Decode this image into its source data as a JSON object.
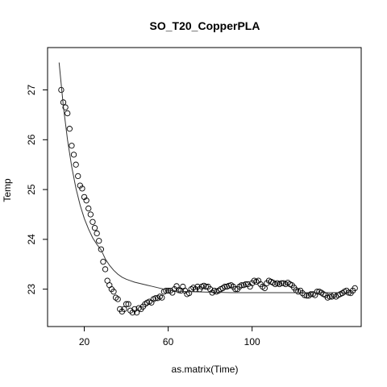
{
  "chart_data": {
    "type": "scatter",
    "title": "SO_T20_CopperPLA",
    "xlabel": "as.matrix(Time)",
    "ylabel": "Temp",
    "xlim": [
      2.5,
      152
    ],
    "ylim": [
      22.25,
      27.85
    ],
    "xticks": [
      20,
      60,
      100
    ],
    "yticks": [
      23,
      24,
      25,
      26,
      27
    ],
    "grid": false,
    "legend": "none",
    "series": [
      {
        "kind": "points",
        "x": [
          9,
          10,
          11,
          12,
          13,
          14,
          15,
          16,
          17,
          18,
          19,
          20,
          21,
          22,
          23,
          24,
          25,
          26,
          27,
          28,
          29,
          30,
          31,
          32,
          33,
          34,
          35,
          36,
          37,
          38,
          39,
          40,
          41,
          42,
          43,
          44,
          45,
          46,
          47,
          48,
          49,
          50,
          51,
          52,
          53,
          54,
          55,
          56,
          57,
          58,
          59,
          60,
          61,
          62,
          63,
          64,
          65,
          66,
          67,
          68,
          69,
          70,
          71,
          72,
          73,
          74,
          75,
          76,
          77,
          78,
          79,
          80,
          81,
          82,
          83,
          84,
          85,
          86,
          87,
          88,
          89,
          90,
          91,
          92,
          93,
          94,
          95,
          96,
          97,
          98,
          99,
          100,
          101,
          102,
          103,
          104,
          105,
          106,
          107,
          108,
          109,
          110,
          111,
          112,
          113,
          114,
          115,
          116,
          117,
          118,
          119,
          120,
          121,
          122,
          123,
          124,
          125,
          126,
          127,
          128,
          129,
          130,
          131,
          132,
          133,
          134,
          135,
          136,
          137,
          138,
          139,
          140,
          141,
          142,
          143,
          144,
          145,
          146,
          147,
          148,
          149
        ],
        "y": [
          27.0,
          26.75,
          26.65,
          26.53,
          26.22,
          25.88,
          25.7,
          25.5,
          25.27,
          25.08,
          25.02,
          24.85,
          24.78,
          24.62,
          24.5,
          24.35,
          24.23,
          24.12,
          23.97,
          23.8,
          23.55,
          23.4,
          23.17,
          23.08,
          23.0,
          22.95,
          22.83,
          22.8,
          22.6,
          22.55,
          22.6,
          22.7,
          22.7,
          22.57,
          22.53,
          22.6,
          22.53,
          22.62,
          22.6,
          22.65,
          22.7,
          22.73,
          22.75,
          22.73,
          22.8,
          22.82,
          22.82,
          22.85,
          22.83,
          22.95,
          22.97,
          22.97,
          22.97,
          22.93,
          23.0,
          23.06,
          22.98,
          22.97,
          23.05,
          22.97,
          22.9,
          22.92,
          23.0,
          23.03,
          23.0,
          23.05,
          23.0,
          23.05,
          23.07,
          23.05,
          23.05,
          23.0,
          22.93,
          22.97,
          22.95,
          22.97,
          23.0,
          23.02,
          23.05,
          23.05,
          23.07,
          23.08,
          23.05,
          23.0,
          23.0,
          23.05,
          23.08,
          23.08,
          23.1,
          23.1,
          23.05,
          23.12,
          23.17,
          23.15,
          23.17,
          23.1,
          23.05,
          23.02,
          23.12,
          23.17,
          23.15,
          23.13,
          23.1,
          23.12,
          23.1,
          23.12,
          23.12,
          23.1,
          23.13,
          23.1,
          23.08,
          23.03,
          22.98,
          22.95,
          22.97,
          22.92,
          22.88,
          22.87,
          22.87,
          22.9,
          22.9,
          22.88,
          22.95,
          22.95,
          22.93,
          22.9,
          22.88,
          22.83,
          22.85,
          22.85,
          22.88,
          22.85,
          22.88,
          22.9,
          22.92,
          22.95,
          22.97,
          22.93,
          22.92,
          22.97,
          23.02
        ]
      },
      {
        "kind": "line",
        "x": [
          8,
          10,
          12,
          14,
          16,
          18,
          20,
          22,
          24,
          26,
          28,
          30,
          32,
          34,
          36,
          38,
          40,
          42,
          44,
          46,
          48,
          50,
          52,
          54,
          56,
          58,
          60,
          65,
          70,
          80,
          90,
          100,
          110,
          120,
          130,
          140,
          149
        ],
        "y": [
          27.55,
          26.68,
          26.0,
          25.46,
          25.03,
          24.69,
          24.42,
          24.21,
          24.03,
          23.9,
          23.79,
          23.61,
          23.48,
          23.38,
          23.3,
          23.24,
          23.2,
          23.17,
          23.14,
          23.12,
          23.1,
          23.08,
          23.06,
          23.04,
          23.02,
          23.0,
          22.98,
          22.96,
          22.95,
          22.94,
          22.93,
          22.93,
          22.93,
          22.93,
          22.93,
          22.93,
          22.93
        ]
      }
    ]
  }
}
